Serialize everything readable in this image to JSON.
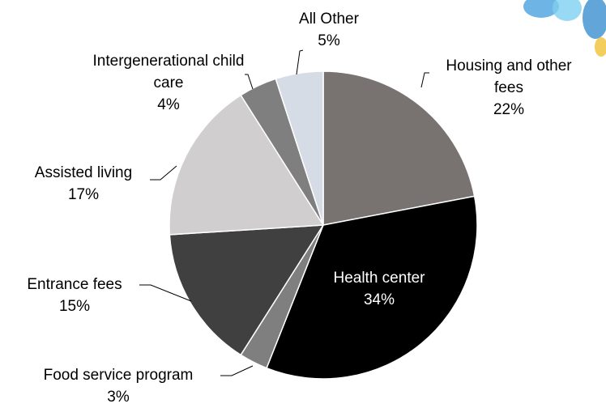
{
  "chart_data": {
    "type": "pie",
    "categories": [
      "Housing and other fees",
      "Health center",
      "Food service program",
      "Entrance fees",
      "Assisted living",
      "Intergenerational child care",
      "All Other"
    ],
    "values": [
      22,
      34,
      3,
      15,
      17,
      4,
      5
    ],
    "value_labels": [
      "22%",
      "34%",
      "3%",
      "15%",
      "17%",
      "4%",
      "5%"
    ],
    "colors": [
      "#787370",
      "#000000",
      "#7f7f7f",
      "#404040",
      "#d0cece",
      "#7f7f7f",
      "#d6dce5"
    ]
  }
}
